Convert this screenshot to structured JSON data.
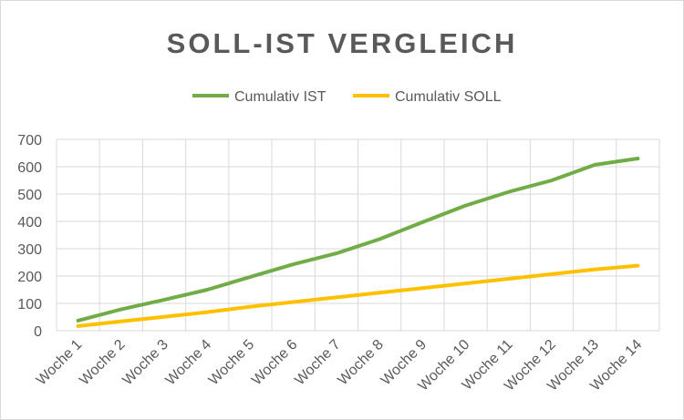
{
  "chart_data": {
    "type": "line",
    "title": "SOLL-IST VERGLEICH",
    "categories": [
      "Woche 1",
      "Woche 2",
      "Woche 3",
      "Woche 4",
      "Woche 5",
      "Woche 6",
      "Woche 7",
      "Woche 8",
      "Woche 9",
      "Woche 10",
      "Woche 11",
      "Woche 12",
      "Woche 13",
      "Woche 14"
    ],
    "series": [
      {
        "name": "Cumulativ IST",
        "color": "#70ad47",
        "values": [
          37,
          78,
          113,
          150,
          197,
          243,
          283,
          335,
          397,
          458,
          508,
          550,
          607,
          630
        ]
      },
      {
        "name": "Cumulativ SOLL",
        "color": "#ffc000",
        "values": [
          17,
          34,
          51,
          68,
          88,
          105,
          122,
          139,
          156,
          173,
          190,
          207,
          224,
          238
        ]
      }
    ],
    "ylim": [
      0,
      700
    ],
    "yticks": [
      "0",
      "100",
      "200",
      "300",
      "400",
      "500",
      "600",
      "700"
    ],
    "grid": true,
    "legend_position": "top"
  }
}
